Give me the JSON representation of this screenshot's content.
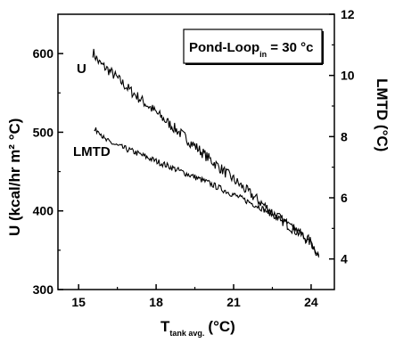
{
  "chart_data": {
    "type": "line",
    "xlabel": "T",
    "xlabel_sub": "tank avg.",
    "xlabel_unit": "(°C)",
    "ylabel_left": "U (kcal/hr m² °C)",
    "ylabel_right": "LMTD (°C)",
    "annotation": {
      "main": "Pond-Loop",
      "sub": "in",
      "rest": " = 30 °c"
    },
    "xlim": [
      14.2,
      24.9
    ],
    "xticks": [
      15,
      18,
      21,
      24
    ],
    "ylim_left": [
      300,
      650
    ],
    "yticks_left": [
      300,
      400,
      500,
      600
    ],
    "ylim_right": [
      3,
      12
    ],
    "yticks_right": [
      4,
      6,
      8,
      10,
      12
    ],
    "series": [
      {
        "name": "U",
        "axis": "left",
        "noise": 7,
        "x": [
          15.55,
          15.8,
          16.2,
          17.0,
          18.0,
          19.0,
          20.0,
          21.0,
          22.0,
          22.8,
          23.4,
          24.0,
          24.3
        ],
        "y": [
          602,
          588,
          578,
          553,
          525,
          497,
          468,
          440,
          412,
          390,
          375,
          360,
          343
        ]
      },
      {
        "name": "LMTD",
        "axis": "right",
        "noise": 0.1,
        "x": [
          15.6,
          15.8,
          16.0,
          16.5,
          17.0,
          18.0,
          19.0,
          20.0,
          21.0,
          22.0,
          23.0,
          23.6,
          24.0,
          24.3
        ],
        "y": [
          8.2,
          8.2,
          7.9,
          7.7,
          7.55,
          7.2,
          6.85,
          6.5,
          6.1,
          5.7,
          5.2,
          4.85,
          4.5,
          4.05
        ]
      }
    ]
  }
}
